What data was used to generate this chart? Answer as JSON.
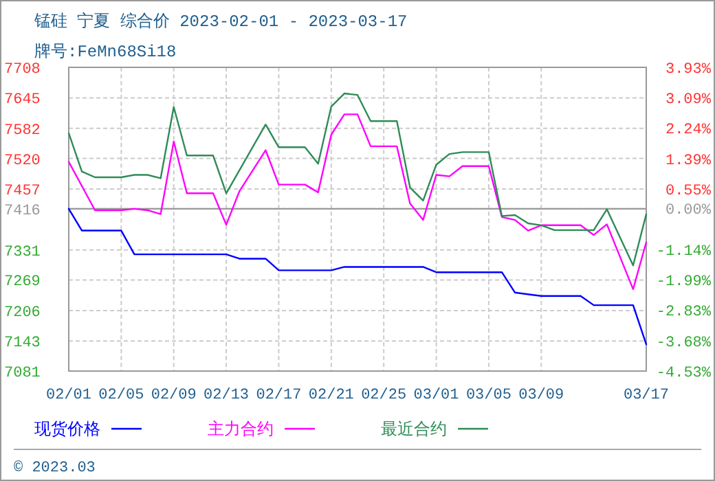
{
  "chart_data": {
    "type": "line",
    "title": "锰硅 宁夏 综合价 2023-02-01 - 2023-03-17",
    "subtitle": "牌号:FeMn68Si18",
    "annotations": [
      "© 2023.03"
    ],
    "xlim": [
      "2023-02-01",
      "2023-03-17"
    ],
    "xticks": [
      {
        "value": "2023-02-01",
        "label": "02/01"
      },
      {
        "value": "2023-02-05",
        "label": "02/05"
      },
      {
        "value": "2023-02-09",
        "label": "02/09"
      },
      {
        "value": "2023-02-13",
        "label": "02/13"
      },
      {
        "value": "2023-02-17",
        "label": "02/17"
      },
      {
        "value": "2023-02-21",
        "label": "02/21"
      },
      {
        "value": "2023-02-25",
        "label": "02/25"
      },
      {
        "value": "2023-03-01",
        "label": "03/01"
      },
      {
        "value": "2023-03-05",
        "label": "03/05"
      },
      {
        "value": "2023-03-09",
        "label": "03/09"
      },
      {
        "value": "2023-03-17",
        "label": "03/17"
      }
    ],
    "ylim": [
      7081,
      7708
    ],
    "yticks": [
      7708,
      7645,
      7582,
      7520,
      7457,
      7416,
      7331,
      7269,
      7206,
      7143,
      7081
    ],
    "y2lim": [
      -4.53,
      3.93
    ],
    "y2ticks": [
      {
        "value": 3.93,
        "label": "3.93%"
      },
      {
        "value": 3.09,
        "label": "3.09%"
      },
      {
        "value": 2.24,
        "label": "2.24%"
      },
      {
        "value": 1.39,
        "label": "1.39%"
      },
      {
        "value": 0.55,
        "label": "0.55%"
      },
      {
        "value": 0,
        "label": "0.00%"
      },
      {
        "value": -1.14,
        "label": "-1.14%"
      },
      {
        "value": -1.99,
        "label": "-1.99%"
      },
      {
        "value": -2.83,
        "label": "-2.83%"
      },
      {
        "value": -3.68,
        "label": "-3.68%"
      },
      {
        "value": -4.53,
        "label": "-4.53%"
      }
    ],
    "ref_lines": [
      {
        "axis": "y",
        "value": 7416,
        "color": "#999999"
      }
    ],
    "grid": true,
    "legend": "bottom",
    "line_style": "solid",
    "series": [
      {
        "name": "现货价格",
        "color": "#0000ff",
        "x": [
          "2023-02-01",
          "2023-02-02",
          "2023-02-05",
          "2023-02-06",
          "2023-02-13",
          "2023-02-14",
          "2023-02-16",
          "2023-02-17",
          "2023-02-21",
          "2023-02-22",
          "2023-02-28",
          "2023-03-01",
          "2023-03-06",
          "2023-03-07",
          "2023-03-09",
          "2023-03-12",
          "2023-03-13",
          "2023-03-16",
          "2023-03-17"
        ],
        "values": [
          7416,
          7371,
          7371,
          7322,
          7322,
          7313,
          7313,
          7289,
          7289,
          7296,
          7296,
          7285,
          7285,
          7243,
          7236,
          7236,
          7217,
          7217,
          7136
        ]
      },
      {
        "name": "主力合约",
        "color": "#ff00ff",
        "x": [
          "2023-02-01",
          "2023-02-03",
          "2023-02-05",
          "2023-02-06",
          "2023-02-07",
          "2023-02-08",
          "2023-02-09",
          "2023-02-10",
          "2023-02-12",
          "2023-02-13",
          "2023-02-14",
          "2023-02-16",
          "2023-02-17",
          "2023-02-19",
          "2023-02-20",
          "2023-02-21",
          "2023-02-22",
          "2023-02-23",
          "2023-02-24",
          "2023-02-26",
          "2023-02-27",
          "2023-02-28",
          "2023-03-01",
          "2023-03-02",
          "2023-03-03",
          "2023-03-05",
          "2023-03-06",
          "2023-03-07",
          "2023-03-08",
          "2023-03-09",
          "2023-03-12",
          "2023-03-13",
          "2023-03-14",
          "2023-03-16",
          "2023-03-17"
        ],
        "values": [
          7513,
          7413,
          7413,
          7416,
          7413,
          7405,
          7555,
          7448,
          7448,
          7383,
          7452,
          7537,
          7466,
          7466,
          7450,
          7569,
          7611,
          7611,
          7545,
          7545,
          7427,
          7393,
          7486,
          7483,
          7504,
          7504,
          7399,
          7393,
          7371,
          7382,
          7382,
          7362,
          7384,
          7250,
          7347
        ]
      },
      {
        "name": "最近合约",
        "color": "#2e8b57",
        "x": [
          "2023-02-01",
          "2023-02-02",
          "2023-02-03",
          "2023-02-05",
          "2023-02-06",
          "2023-02-07",
          "2023-02-08",
          "2023-02-09",
          "2023-02-10",
          "2023-02-12",
          "2023-02-13",
          "2023-02-16",
          "2023-02-17",
          "2023-02-19",
          "2023-02-20",
          "2023-02-21",
          "2023-02-22",
          "2023-02-23",
          "2023-02-24",
          "2023-02-26",
          "2023-02-27",
          "2023-02-28",
          "2023-03-01",
          "2023-03-02",
          "2023-03-03",
          "2023-03-05",
          "2023-03-06",
          "2023-03-07",
          "2023-03-08",
          "2023-03-09",
          "2023-03-10",
          "2023-03-13",
          "2023-03-14",
          "2023-03-16",
          "2023-03-17"
        ],
        "values": [
          7572,
          7493,
          7481,
          7481,
          7486,
          7486,
          7479,
          7626,
          7526,
          7526,
          7448,
          7590,
          7543,
          7543,
          7509,
          7627,
          7654,
          7651,
          7597,
          7597,
          7460,
          7433,
          7507,
          7529,
          7533,
          7533,
          7401,
          7403,
          7386,
          7382,
          7372,
          7372,
          7415,
          7299,
          7405
        ]
      }
    ]
  }
}
